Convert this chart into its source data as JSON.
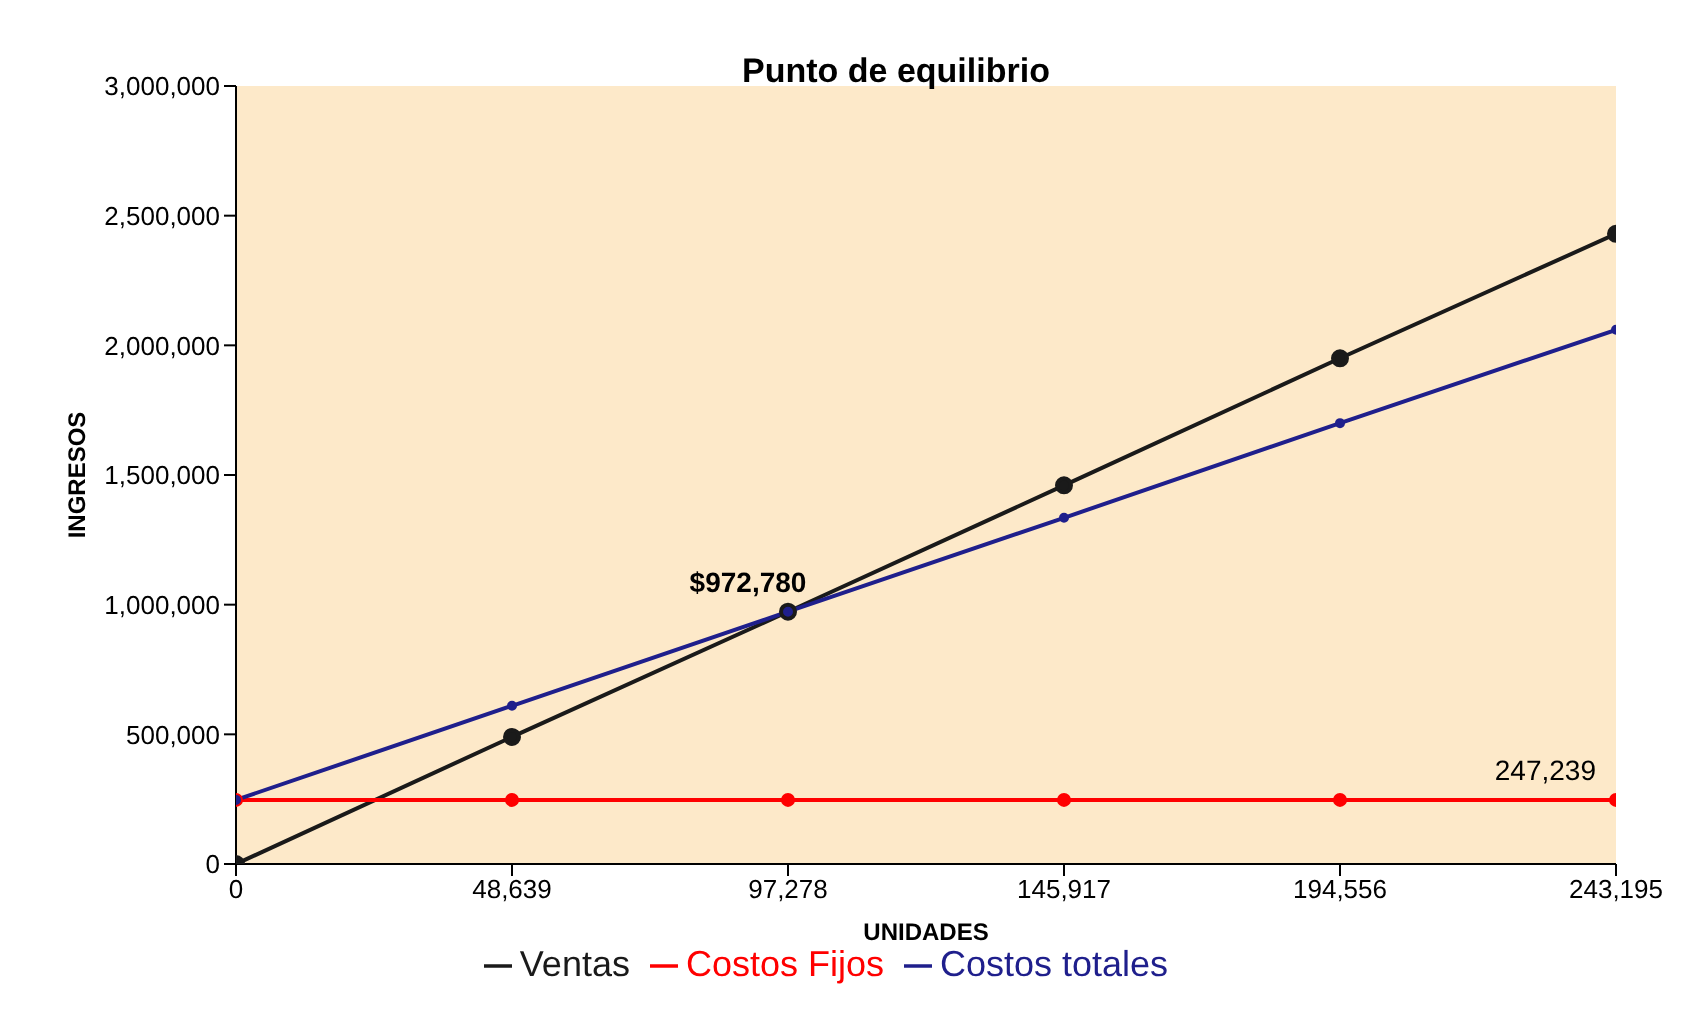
{
  "chart_data": {
    "type": "line",
    "title": "Punto de equilibrio",
    "xlabel": "UNIDADES",
    "ylabel": "INGRESOS",
    "x": [
      0,
      48639,
      97278,
      145917,
      194556,
      243195
    ],
    "series": [
      {
        "name": "Ventas",
        "color": "#1a1a1a",
        "values": [
          0,
          490000,
          972780,
          1460000,
          1950000,
          2430000
        ]
      },
      {
        "name": "Costos Fijos",
        "color": "#ff0000",
        "values": [
          247239,
          247239,
          247239,
          247239,
          247239,
          247239
        ]
      },
      {
        "name": "Costos totales",
        "color": "#1f1f8c",
        "values": [
          247239,
          610000,
          972780,
          1335000,
          1700000,
          2060000
        ]
      }
    ],
    "xlim": [
      0,
      243195
    ],
    "xticks": [
      0,
      {
        "value": 48639,
        "label": "48,639"
      },
      {
        "value": 97278,
        "label": "97,278"
      },
      {
        "value": 145917,
        "label": "145,917"
      },
      {
        "value": 194556,
        "label": "194,556"
      },
      {
        "value": 243195,
        "label": "243,195"
      }
    ],
    "ylim": [
      0,
      3000000
    ],
    "yticks": [
      0,
      {
        "value": 500000,
        "label": "500,000"
      },
      {
        "value": 1000000,
        "label": "1,000,000"
      },
      {
        "value": 1500000,
        "label": "1,500,000"
      },
      {
        "value": 2000000,
        "label": "2,000,000"
      },
      {
        "value": 2500000,
        "label": "2,500,000"
      },
      {
        "value": 3000000,
        "label": "3,000,000"
      }
    ],
    "annotations": [
      {
        "text": "$972,780",
        "x": 97278,
        "y": 972780
      },
      {
        "text": "247,239",
        "x": 243195,
        "y": 247239
      }
    ],
    "marker": "circle",
    "line_style": "solid",
    "legend": "bottom",
    "grid": false
  }
}
